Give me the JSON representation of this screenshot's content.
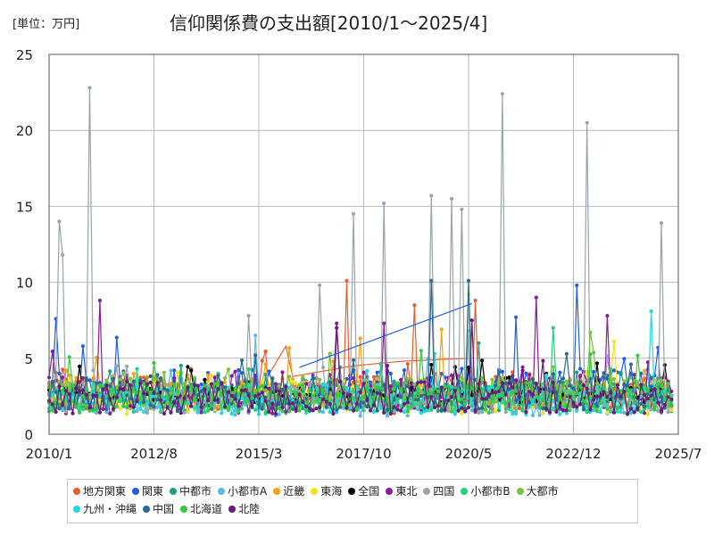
{
  "header": {
    "unit_label": "[単位：万円]",
    "title": "信仰関係費の支出額[2010/1～2025/4]"
  },
  "chart_data": {
    "type": "line",
    "title": "信仰関係費の支出額[2010/1～2025/4]",
    "unit": "[単位：万円]",
    "xlabel": "",
    "ylabel": "",
    "x_start": "2010/1",
    "x_end": "2025/4",
    "x_range_months": [
      0,
      186
    ],
    "ylim": [
      0,
      25
    ],
    "y_ticks": [
      "0",
      "5",
      "10",
      "15",
      "20",
      "25"
    ],
    "x_ticks": [
      {
        "label": "2010/1",
        "month": 0
      },
      {
        "label": "2012/8",
        "month": 31
      },
      {
        "label": "2015/3",
        "month": 62
      },
      {
        "label": "2017/10",
        "month": 93
      },
      {
        "label": "2020/5",
        "month": 124
      },
      {
        "label": "2022/12",
        "month": 155
      },
      {
        "label": "2025/7",
        "month": 186
      }
    ],
    "grid": true,
    "legend_position": "bottom",
    "series": [
      {
        "name": "地方関東",
        "color": "#f05a28",
        "base": 2.6,
        "amp": 1.1,
        "spikes": [
          {
            "m": 88,
            "v": 10.1
          },
          {
            "m": 108,
            "v": 8.5
          },
          {
            "m": 126,
            "v": 8.8
          }
        ],
        "points": [
          {
            "m": 63,
            "v": 3.2
          },
          {
            "m": 70,
            "v": 5.8
          },
          {
            "m": 72,
            "v": 3.8
          },
          {
            "m": 90,
            "v": 4.5
          },
          {
            "m": 104,
            "v": 4.8
          },
          {
            "m": 124,
            "v": 5.0
          }
        ]
      },
      {
        "name": "関東",
        "color": "#1f5fe0",
        "base": 2.9,
        "amp": 1.3,
        "spikes": [
          {
            "m": 2,
            "v": 7.6
          },
          {
            "m": 10,
            "v": 5.8
          },
          {
            "m": 138,
            "v": 7.7
          },
          {
            "m": 156,
            "v": 9.8
          },
          {
            "m": 180,
            "v": 5.7
          }
        ],
        "points": []
      },
      {
        "name": "中都市",
        "color": "#1aa088",
        "base": 2.4,
        "amp": 1.0,
        "spikes": [
          {
            "m": 127,
            "v": 6.0
          }
        ],
        "points": []
      },
      {
        "name": "小都市A",
        "color": "#5bb8e8",
        "base": 2.1,
        "amp": 1.0,
        "spikes": [
          {
            "m": 61,
            "v": 6.5
          },
          {
            "m": 124,
            "v": 6.8
          }
        ],
        "points": []
      },
      {
        "name": "近畿",
        "color": "#f5a21a",
        "base": 2.7,
        "amp": 1.1,
        "spikes": [
          {
            "m": 92,
            "v": 6.3
          },
          {
            "m": 116,
            "v": 6.9
          }
        ],
        "points": []
      },
      {
        "name": "東海",
        "color": "#f2e21a",
        "base": 2.3,
        "amp": 1.1,
        "spikes": [
          {
            "m": 124,
            "v": 9.2
          },
          {
            "m": 167,
            "v": 6.1
          }
        ],
        "points": []
      },
      {
        "name": "全国",
        "color": "#000000",
        "base": 2.5,
        "amp": 0.5,
        "spikes": [
          {
            "m": 120,
            "v": 4.4
          },
          {
            "m": 147,
            "v": 4.0
          }
        ],
        "points": []
      },
      {
        "name": "東北",
        "color": "#8a1a9e",
        "base": 2.5,
        "amp": 1.3,
        "spikes": [
          {
            "m": 15,
            "v": 8.8
          },
          {
            "m": 85,
            "v": 7.3
          },
          {
            "m": 99,
            "v": 7.3
          },
          {
            "m": 144,
            "v": 9.0
          },
          {
            "m": 165,
            "v": 7.8
          }
        ],
        "points": []
      },
      {
        "name": "四国",
        "color": "#9aa4aa",
        "base": 2.3,
        "amp": 1.0,
        "spikes": [
          {
            "m": 3,
            "v": 14.0
          },
          {
            "m": 4,
            "v": 11.8
          },
          {
            "m": 12,
            "v": 22.8
          },
          {
            "m": 59,
            "v": 7.8
          },
          {
            "m": 80,
            "v": 9.8
          },
          {
            "m": 90,
            "v": 14.5
          },
          {
            "m": 99,
            "v": 15.2
          },
          {
            "m": 113,
            "v": 15.7
          },
          {
            "m": 119,
            "v": 15.5
          },
          {
            "m": 122,
            "v": 14.8
          },
          {
            "m": 134,
            "v": 22.4
          },
          {
            "m": 159,
            "v": 20.5
          },
          {
            "m": 181,
            "v": 13.9
          }
        ],
        "points": []
      },
      {
        "name": "小都市B",
        "color": "#22d07a",
        "base": 2.2,
        "amp": 0.9,
        "spikes": [
          {
            "m": 149,
            "v": 7.0
          }
        ],
        "points": []
      },
      {
        "name": "大都市",
        "color": "#7ac23a",
        "base": 2.7,
        "amp": 1.0,
        "spikes": [
          {
            "m": 160,
            "v": 6.7
          }
        ],
        "points": []
      },
      {
        "name": "九州・沖縄",
        "color": "#22d8d8",
        "base": 2.2,
        "amp": 1.0,
        "spikes": [
          {
            "m": 178,
            "v": 8.1
          }
        ],
        "points": []
      },
      {
        "name": "中国",
        "color": "#2a6a96",
        "base": 2.5,
        "amp": 1.1,
        "spikes": [
          {
            "m": 113,
            "v": 10.1
          },
          {
            "m": 124,
            "v": 10.1
          }
        ],
        "points": []
      },
      {
        "name": "北海道",
        "color": "#2ecc40",
        "base": 2.3,
        "amp": 1.0,
        "spikes": [
          {
            "m": 110,
            "v": 5.5
          }
        ],
        "points": []
      },
      {
        "name": "北陸",
        "color": "#6a1a7a",
        "base": 2.3,
        "amp": 1.1,
        "spikes": [
          {
            "m": 85,
            "v": 7.0
          },
          {
            "m": 125,
            "v": 7.5
          }
        ],
        "points": []
      }
    ]
  }
}
